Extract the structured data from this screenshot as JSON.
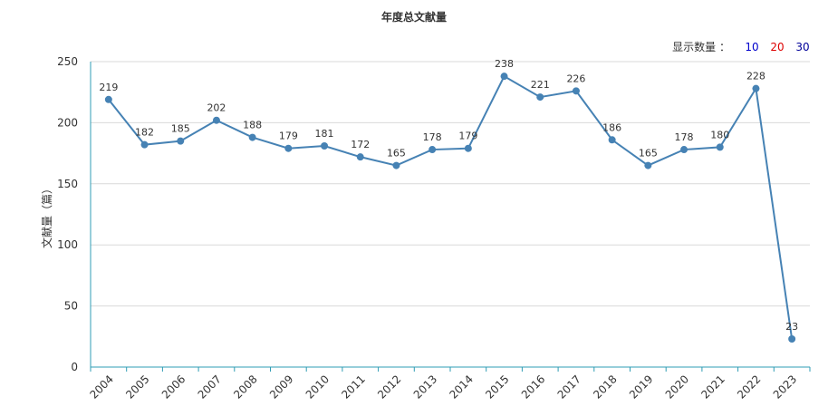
{
  "title": "年度总文献量",
  "count_selector": {
    "label": "显示数量 ：",
    "options": [
      {
        "label": "10",
        "color": "#0000cc"
      },
      {
        "label": "20",
        "color": "#dd0000"
      },
      {
        "label": "30",
        "color": "#000099"
      }
    ]
  },
  "colors": {
    "line": "#4682b4",
    "axis": "#2f9cb4",
    "grid": "#d9d9d9"
  },
  "chart_data": {
    "type": "line",
    "title": "年度总文献量",
    "xlabel": "",
    "ylabel": "文献量（篇）",
    "ylim": [
      0,
      250
    ],
    "yticks": [
      0,
      50,
      100,
      150,
      200,
      250
    ],
    "grid": true,
    "categories": [
      "2004",
      "2005",
      "2006",
      "2007",
      "2008",
      "2009",
      "2010",
      "2011",
      "2012",
      "2013",
      "2014",
      "2015",
      "2016",
      "2017",
      "2018",
      "2019",
      "2020",
      "2021",
      "2022",
      "2023"
    ],
    "series": [
      {
        "values": [
          219,
          182,
          185,
          202,
          188,
          179,
          181,
          172,
          165,
          178,
          179,
          238,
          221,
          226,
          186,
          165,
          178,
          180,
          228,
          23
        ]
      }
    ]
  }
}
